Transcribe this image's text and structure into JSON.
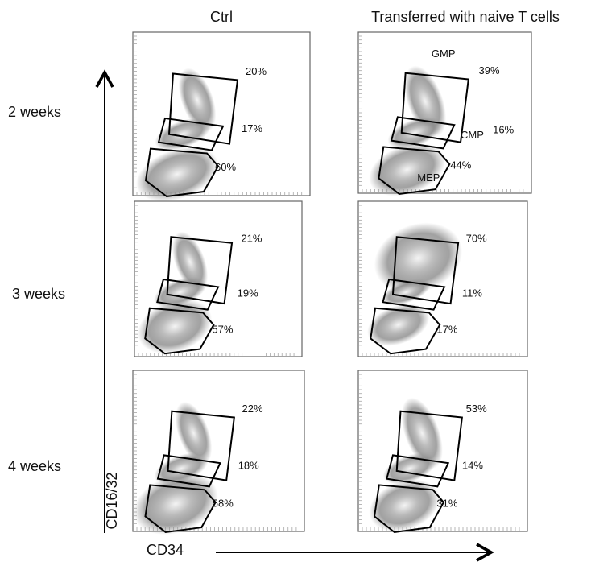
{
  "columns": [
    "Ctrl",
    "Transferred with naive T cells"
  ],
  "rows": [
    "2 weeks",
    "3 weeks",
    "4 weeks"
  ],
  "y_axis_label": "CD16/32",
  "x_axis_label": "CD34",
  "panels": [
    {
      "gates": [
        {
          "percent": "20%"
        },
        {
          "percent": "17%"
        },
        {
          "percent": "60%"
        }
      ]
    },
    {
      "gates": [
        {
          "name": "GMP",
          "percent": "39%"
        },
        {
          "name": "CMP",
          "percent": "16%"
        },
        {
          "name": "MEP",
          "percent": "44%"
        }
      ]
    },
    {
      "gates": [
        {
          "percent": "21%"
        },
        {
          "percent": "19%"
        },
        {
          "percent": "57%"
        }
      ]
    },
    {
      "gates": [
        {
          "percent": "70%"
        },
        {
          "percent": "11%"
        },
        {
          "percent": "17%"
        }
      ]
    },
    {
      "gates": [
        {
          "percent": "22%"
        },
        {
          "percent": "18%"
        },
        {
          "percent": "58%"
        }
      ]
    },
    {
      "gates": [
        {
          "percent": "53%"
        },
        {
          "percent": "14%"
        },
        {
          "percent": "31%"
        }
      ]
    }
  ]
}
